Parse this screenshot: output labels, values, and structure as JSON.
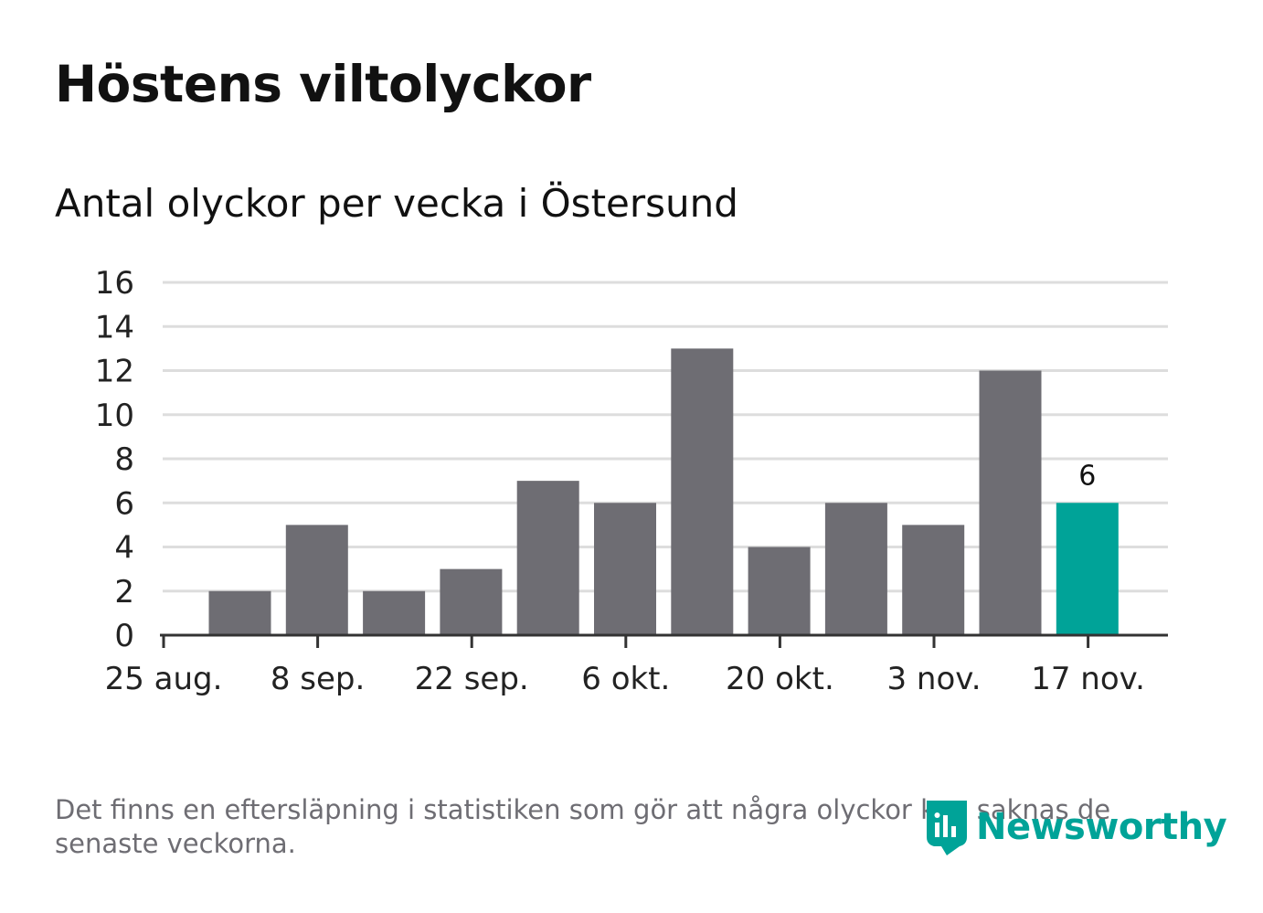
{
  "title": "Höstens viltolyckor",
  "subtitle": "Antal olyckor per vecka i Östersund",
  "footnote": "Det finns en eftersläpning i statistiken som gör att några olyckor kan saknas de senaste veckorna.",
  "brand": "Newsworthy",
  "colors": {
    "bar": "#6e6d73",
    "highlight": "#00a398",
    "grid": "#dddddd",
    "axis": "#333333",
    "text": "#222222"
  },
  "chart_data": {
    "type": "bar",
    "title": "Höstens viltolyckor",
    "subtitle": "Antal olyckor per vecka i Östersund",
    "xlabel": "",
    "ylabel": "",
    "ylim": [
      0,
      16
    ],
    "y_ticks": [
      0,
      2,
      4,
      6,
      8,
      10,
      12,
      14,
      16
    ],
    "x_tick_labels": [
      "25 aug.",
      "8 sep.",
      "22 sep.",
      "6 okt.",
      "20 okt.",
      "3 nov.",
      "17 nov."
    ],
    "values": [
      2,
      5,
      2,
      3,
      7,
      6,
      13,
      4,
      6,
      5,
      12,
      6
    ],
    "highlight_index": 11,
    "data_labels": [
      {
        "index": 11,
        "text": "6"
      }
    ],
    "grid": true
  }
}
